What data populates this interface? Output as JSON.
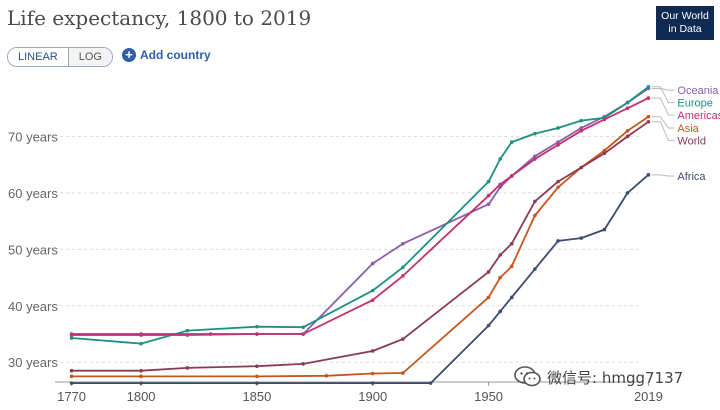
{
  "title": "Life expectancy, 1800 to 2019",
  "logo": {
    "line1": "Our World",
    "line2": "in Data"
  },
  "controls": {
    "linear_label": "LINEAR",
    "log_label": "LOG",
    "add_country_label": "Add country"
  },
  "watermark": {
    "text": "微信号: hmgg7137"
  },
  "chart_data": {
    "type": "line",
    "title": "Life expectancy, 1800 to 2019",
    "xlabel": "",
    "ylabel": "",
    "x_ticks": [
      1770,
      1800,
      1850,
      1900,
      1950,
      2019
    ],
    "y_ticks": [
      30,
      40,
      50,
      60,
      70
    ],
    "y_tick_suffix": " years",
    "xlim": [
      1765,
      2024
    ],
    "ylim": [
      26.5,
      80
    ],
    "grid": "horizontal dashed",
    "legend": "right, labels at line ends",
    "series": [
      {
        "name": "Oceania",
        "color": "#8c5ea8",
        "label_y": 78.2,
        "points": [
          [
            1770,
            34.8
          ],
          [
            1800,
            34.8
          ],
          [
            1820,
            34.8
          ],
          [
            1850,
            35.0
          ],
          [
            1870,
            35.0
          ],
          [
            1900,
            47.5
          ],
          [
            1913,
            51
          ],
          [
            1950,
            58
          ],
          [
            1955,
            61
          ],
          [
            1960,
            63
          ],
          [
            1970,
            66.5
          ],
          [
            1980,
            69
          ],
          [
            1990,
            71.5
          ],
          [
            2000,
            73.5
          ],
          [
            2010,
            76
          ],
          [
            2019,
            78.5
          ]
        ]
      },
      {
        "name": "Europe",
        "color": "#1f8f86",
        "label_y": 76.0,
        "points": [
          [
            1770,
            34.3
          ],
          [
            1800,
            33.3
          ],
          [
            1820,
            35.6
          ],
          [
            1850,
            36.3
          ],
          [
            1870,
            36.2
          ],
          [
            1900,
            42.7
          ],
          [
            1913,
            46.8
          ],
          [
            1950,
            62
          ],
          [
            1955,
            66
          ],
          [
            1960,
            69
          ],
          [
            1970,
            70.5
          ],
          [
            1980,
            71.5
          ],
          [
            1990,
            72.8
          ],
          [
            2000,
            73.3
          ],
          [
            2010,
            76
          ],
          [
            2019,
            78.8
          ]
        ]
      },
      {
        "name": "Americas",
        "color": "#c2306e",
        "label_y": 73.8,
        "points": [
          [
            1770,
            35.0
          ],
          [
            1800,
            35.0
          ],
          [
            1830,
            35.0
          ],
          [
            1850,
            35.0
          ],
          [
            1870,
            35.0
          ],
          [
            1900,
            41.0
          ],
          [
            1913,
            45.3
          ],
          [
            1950,
            59.5
          ],
          [
            1955,
            61.5
          ],
          [
            1960,
            63
          ],
          [
            1970,
            66
          ],
          [
            1980,
            68.5
          ],
          [
            1990,
            71
          ],
          [
            2000,
            73
          ],
          [
            2010,
            75
          ],
          [
            2019,
            76.8
          ]
        ]
      },
      {
        "name": "Asia",
        "color": "#c4561e",
        "label_y": 71.5,
        "points": [
          [
            1770,
            27.5
          ],
          [
            1800,
            27.5
          ],
          [
            1850,
            27.5
          ],
          [
            1880,
            27.6
          ],
          [
            1900,
            28.0
          ],
          [
            1913,
            28.1
          ],
          [
            1950,
            41.5
          ],
          [
            1955,
            45
          ],
          [
            1960,
            47
          ],
          [
            1970,
            56
          ],
          [
            1980,
            61
          ],
          [
            1990,
            64.5
          ],
          [
            2000,
            67.5
          ],
          [
            2010,
            71
          ],
          [
            2019,
            73.5
          ]
        ]
      },
      {
        "name": "World",
        "color": "#8b3a52",
        "label_y": 69.3,
        "points": [
          [
            1770,
            28.5
          ],
          [
            1800,
            28.5
          ],
          [
            1820,
            29.0
          ],
          [
            1850,
            29.3
          ],
          [
            1870,
            29.7
          ],
          [
            1900,
            32.0
          ],
          [
            1913,
            34.1
          ],
          [
            1950,
            46.0
          ],
          [
            1955,
            49
          ],
          [
            1960,
            51
          ],
          [
            1970,
            58.5
          ],
          [
            1980,
            62
          ],
          [
            1990,
            64.5
          ],
          [
            2000,
            67
          ],
          [
            2010,
            70
          ],
          [
            2019,
            72.6
          ]
        ]
      },
      {
        "name": "Africa",
        "color": "#3d4b6e",
        "label_y": 63.0,
        "points": [
          [
            1770,
            26.3
          ],
          [
            1800,
            26.3
          ],
          [
            1850,
            26.3
          ],
          [
            1900,
            26.3
          ],
          [
            1925,
            26.3
          ],
          [
            1950,
            36.5
          ],
          [
            1955,
            39
          ],
          [
            1960,
            41.5
          ],
          [
            1970,
            46.5
          ],
          [
            1980,
            51.5
          ],
          [
            1990,
            52
          ],
          [
            2000,
            53.5
          ],
          [
            2010,
            60
          ],
          [
            2019,
            63.2
          ]
        ]
      }
    ]
  }
}
